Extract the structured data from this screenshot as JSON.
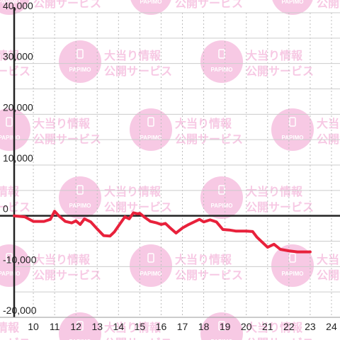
{
  "watermark": {
    "line1": "大当り情報",
    "line2": "公開サービス",
    "badge_text": "PAPIMO",
    "color": "#f7c9e4"
  },
  "chart_data": {
    "type": "line",
    "title": "",
    "xlabel": "",
    "ylabel": "",
    "x_ticks": [
      "10",
      "11",
      "12",
      "13",
      "14",
      "15",
      "16",
      "17",
      "18",
      "19",
      "20",
      "21",
      "22",
      "23",
      "24"
    ],
    "y_ticks": [
      "-20,000",
      "-10,000",
      "0",
      "10,000",
      "20,000",
      "30,000",
      "40,000"
    ],
    "xlim": [
      9.1,
      24.4
    ],
    "ylim": [
      -20000,
      40000
    ],
    "grid": true,
    "series": [
      {
        "color": "#e8213b",
        "x": [
          9.1,
          9.6,
          10.0,
          10.5,
          10.8,
          11.0,
          11.2,
          11.5,
          11.8,
          12.0,
          12.2,
          12.4,
          12.7,
          13.0,
          13.3,
          13.6,
          13.8,
          14.0,
          14.3,
          14.5,
          14.7,
          14.9,
          15.0,
          15.2,
          15.5,
          15.8,
          16.0,
          16.2,
          16.4,
          16.7,
          17.0,
          17.3,
          17.6,
          17.8,
          18.0,
          18.3,
          18.6,
          18.9,
          19.2,
          19.5,
          19.8,
          20.0,
          20.3,
          20.5,
          20.8,
          21.0,
          21.3,
          21.6,
          22.0,
          22.4,
          22.7,
          23.0
        ],
        "values": [
          0,
          -200,
          -1100,
          -1100,
          -700,
          900,
          0,
          -1100,
          -1400,
          -1000,
          -1700,
          -600,
          -1200,
          -2600,
          -3900,
          -4000,
          -3200,
          -2000,
          -200,
          -600,
          600,
          400,
          500,
          -200,
          -1100,
          -1400,
          -1700,
          -1500,
          -2300,
          -3400,
          -2400,
          -1700,
          -1100,
          -700,
          -1200,
          -800,
          -1200,
          -2700,
          -2800,
          -3000,
          -3000,
          -3000,
          -3100,
          -4200,
          -5400,
          -6200,
          -5600,
          -6600,
          -6900,
          -7100,
          -7100,
          -7100
        ]
      }
    ]
  }
}
